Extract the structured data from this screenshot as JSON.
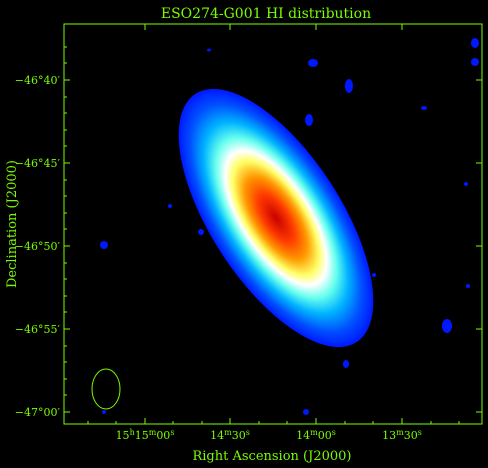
{
  "title": "ESO274-G001  HI distribution",
  "xlabel": "Right Ascension (J2000)",
  "ylabel": "Declination (J2000)",
  "colors": {
    "axes": "#7CFC00",
    "background": "#000000"
  },
  "x_ticks": [
    {
      "h": "15",
      "m": "15",
      "s": "00"
    },
    {
      "m": "14",
      "s": "30"
    },
    {
      "m": "14",
      "s": "00"
    },
    {
      "m": "13",
      "s": "30"
    }
  ],
  "y_ticks": [
    "−46°40′",
    "−46°45′",
    "−46°50′",
    "−46°55′",
    "−47°00′"
  ],
  "beam": "beam-ellipse"
}
